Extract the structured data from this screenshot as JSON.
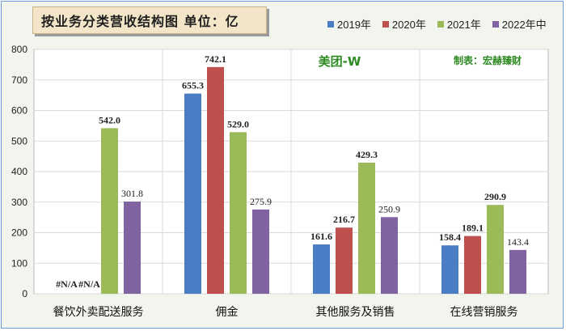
{
  "title": "按业务分类营收结构图 单位：亿",
  "brand": "美团-W",
  "author": "制表：宏赫臻财",
  "chart_data": {
    "type": "bar",
    "categories": [
      "餐饮外卖配送服务",
      "佣金",
      "其他服务及销售",
      "在线营销服务"
    ],
    "series": [
      {
        "name": "2019年",
        "color": "#4a7dc4",
        "values": [
          null,
          655.3,
          161.6,
          158.4
        ],
        "labels": [
          "#N/A",
          "655.3",
          "161.6",
          "158.4"
        ]
      },
      {
        "name": "2020年",
        "color": "#c0504d",
        "values": [
          null,
          742.1,
          216.7,
          189.1
        ],
        "labels": [
          "#N/A",
          "742.1",
          "216.7",
          "189.1"
        ]
      },
      {
        "name": "2021年",
        "color": "#9bbb59",
        "values": [
          542.0,
          529.0,
          429.3,
          290.9
        ],
        "labels": [
          "542.0",
          "529.0",
          "429.3",
          "290.9"
        ]
      },
      {
        "name": "2022年中",
        "color": "#8064a2",
        "values": [
          301.8,
          275.9,
          250.9,
          143.4
        ],
        "labels": [
          "301.8",
          "275.9",
          "250.9",
          "143.4"
        ]
      }
    ],
    "ylim": [
      0,
      800
    ],
    "yticks": [
      "0",
      "100",
      "200",
      "300",
      "400",
      "500",
      "600",
      "700",
      "800"
    ],
    "grid": true,
    "legend_position": "top-right"
  }
}
